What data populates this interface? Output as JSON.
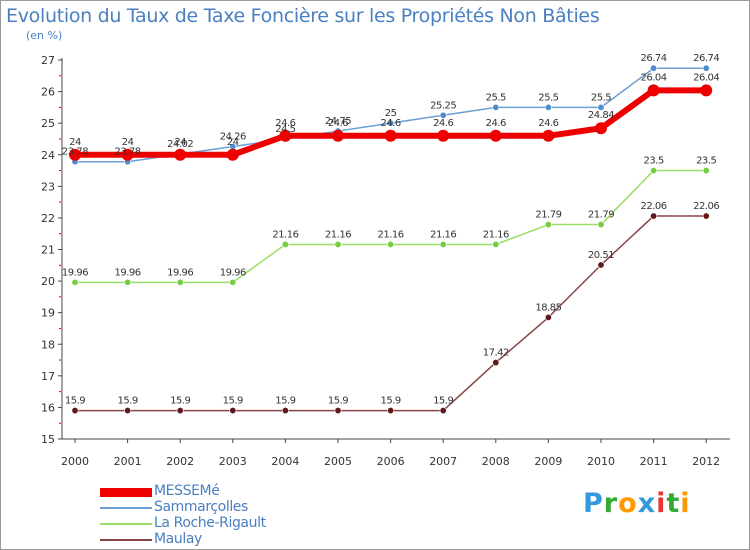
{
  "chart_data": {
    "type": "line",
    "title": "Evolution du Taux de Taxe Foncière sur les Propriétés Non Bâties",
    "ylabel": "(en %)",
    "xlabel": "",
    "ylim": [
      15,
      27
    ],
    "yticks": [
      "15",
      "16",
      "17",
      "18",
      "19",
      "20",
      "21",
      "22",
      "23",
      "24",
      "25",
      "26",
      "27"
    ],
    "categories": [
      "2000",
      "2001",
      "2002",
      "2003",
      "2004",
      "2005",
      "2006",
      "2007",
      "2008",
      "2009",
      "2010",
      "2011",
      "2012"
    ],
    "grid": false,
    "legend_position": "bottom-left",
    "series": [
      {
        "name": "MESSEMé",
        "color": "#ee0000",
        "values": [
          24,
          24,
          24,
          24,
          24.6,
          24.6,
          24.6,
          24.6,
          24.6,
          24.6,
          24.84,
          26.04,
          26.04
        ],
        "labels": [
          "24",
          "24",
          "24",
          "24",
          "24.6",
          "24.6",
          "24.6",
          "24.6",
          "24.6",
          "24.6",
          "24.84",
          "26.04",
          "26.04"
        ]
      },
      {
        "name": "Sammarçolles",
        "color": "#6a9fd4",
        "marker": "#4f8ccc",
        "values": [
          23.78,
          23.78,
          24.02,
          24.26,
          24.5,
          24.75,
          25,
          25.25,
          25.5,
          25.5,
          25.5,
          26.74,
          26.74
        ],
        "labels": [
          "23.78",
          "23.78",
          "24.02",
          "24.26",
          "24.5",
          "24.75",
          "25",
          "25.25",
          "25.5",
          "25.5",
          "25.5",
          "26.74",
          "26.74"
        ]
      },
      {
        "name": "La Roche-Rigault",
        "color": "#99dd66",
        "marker": "#77cc44",
        "values": [
          19.96,
          19.96,
          19.96,
          19.96,
          21.16,
          21.16,
          21.16,
          21.16,
          21.16,
          21.79,
          21.79,
          23.5,
          23.5
        ],
        "labels": [
          "19.96",
          "19.96",
          "19.96",
          "19.96",
          "21.16",
          "21.16",
          "21.16",
          "21.16",
          "21.16",
          "21.79",
          "21.79",
          "23.5",
          "23.5"
        ]
      },
      {
        "name": "Maulay",
        "color": "#884444",
        "marker": "#5e1a1a",
        "values": [
          15.9,
          15.9,
          15.9,
          15.9,
          15.9,
          15.9,
          15.9,
          15.9,
          17.42,
          18.85,
          20.51,
          22.06,
          22.06
        ],
        "labels": [
          "15.9",
          "15.9",
          "15.9",
          "15.9",
          "15.9",
          "15.9",
          "15.9",
          "15.9",
          "17.42",
          "18.85",
          "20.51",
          "22.06",
          "22.06"
        ]
      }
    ]
  },
  "brand": {
    "letters": [
      "P",
      "r",
      "o",
      "x",
      "i",
      "t",
      "i"
    ],
    "colors": [
      "#3399dd",
      "#33aa33",
      "#ff9900",
      "#3399dd",
      "#ee3333",
      "#33aa33",
      "#ff9900"
    ]
  }
}
